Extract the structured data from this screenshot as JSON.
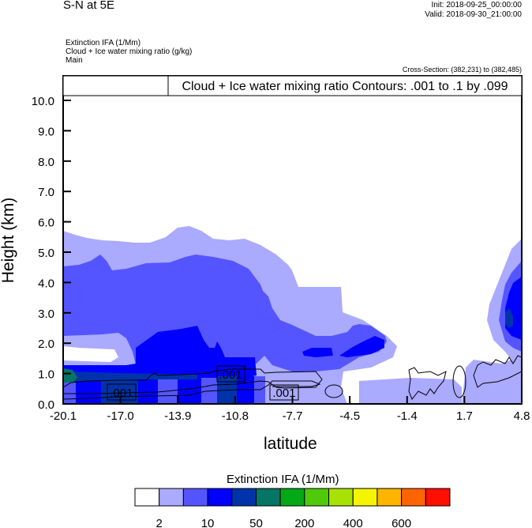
{
  "header": {
    "title": "S-N at 5E",
    "init": "Init: 2018-09-25_00:00:00",
    "valid": "Valid: 2018-09-30_21:00:00",
    "variables": [
      "Extinction IFA   (1/Mm)",
      "Cloud + Ice water mixing ratio    (g/kg)",
      "Main"
    ],
    "cross_section": "Cross-Section: (382,231) to (382,485)"
  },
  "chart_data": {
    "type": "heatmap",
    "subtype": "filled contour cross-section with line contours",
    "contour_title": "Cloud + Ice water mixing ratio Contours: .001 to .1 by .099",
    "xlabel": "latitude",
    "ylabel": "Height (km)",
    "xlim": [
      -20.1,
      4.8
    ],
    "ylim": [
      0,
      10.8
    ],
    "x_ticks": [
      "-20.1",
      "-17.0",
      "-13.9",
      "-10.8",
      "-7.7",
      "-4.5",
      "-1.4",
      "1.7",
      "4.8"
    ],
    "y_ticks": [
      "0.0",
      "1.0",
      "2.0",
      "3.0",
      "4.0",
      "5.0",
      "6.0",
      "7.0",
      "8.0",
      "9.0",
      "10.0"
    ],
    "contour_labels": [
      ".001",
      ".001",
      ".001"
    ],
    "colorbar": {
      "title": "Extinction IFA  (1/Mm)",
      "colors": [
        "#ffffff",
        "#aaaaff",
        "#5555ff",
        "#0000ff",
        "#0033aa",
        "#057565",
        "#05a915",
        "#50c90a",
        "#a8e205",
        "#f5f500",
        "#ffb400",
        "#ff6400",
        "#ff0f00"
      ],
      "labels": [
        "2",
        "10",
        "50",
        "200",
        "400",
        "600"
      ]
    }
  }
}
